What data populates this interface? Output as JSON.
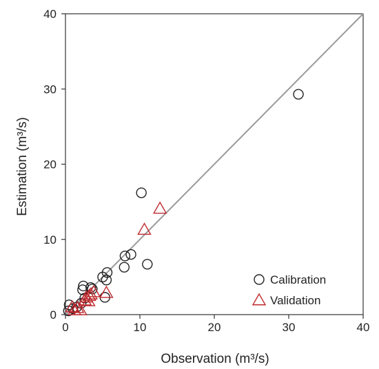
{
  "chart_data": {
    "type": "scatter",
    "title": "",
    "xlabel": "Observation (m³/s)",
    "ylabel": "Estimation (m³/s)",
    "xlim": [
      0,
      40
    ],
    "ylim": [
      0,
      40
    ],
    "xticks": [
      0,
      10,
      20,
      30,
      40
    ],
    "yticks": [
      0,
      10,
      20,
      30,
      40
    ],
    "grid": false,
    "legend_position": "bottom-right",
    "reference_line": {
      "from": [
        0,
        0
      ],
      "to": [
        40,
        40
      ],
      "color": "#9a9a9a"
    },
    "series": [
      {
        "name": "Calibration",
        "marker": "circle",
        "color": "#222222",
        "points": [
          [
            0.4,
            0.5
          ],
          [
            0.5,
            1.3
          ],
          [
            1.0,
            0.8
          ],
          [
            1.5,
            1.0
          ],
          [
            2.1,
            1.5
          ],
          [
            2.3,
            3.3
          ],
          [
            2.4,
            3.8
          ],
          [
            2.6,
            2.2
          ],
          [
            3.4,
            3.6
          ],
          [
            3.6,
            3.4
          ],
          [
            5.0,
            5.0
          ],
          [
            5.3,
            2.3
          ],
          [
            5.5,
            4.6
          ],
          [
            5.6,
            5.6
          ],
          [
            7.9,
            6.3
          ],
          [
            8.0,
            7.8
          ],
          [
            8.8,
            8.0
          ],
          [
            10.2,
            16.2
          ],
          [
            11.0,
            6.7
          ],
          [
            31.3,
            29.3
          ]
        ]
      },
      {
        "name": "Validation",
        "marker": "triangle",
        "color": "#c0282d",
        "points": [
          [
            0.9,
            1.0
          ],
          [
            1.2,
            0.6
          ],
          [
            1.6,
            0.9
          ],
          [
            2.0,
            0.6
          ],
          [
            2.6,
            1.9
          ],
          [
            2.8,
            2.3
          ],
          [
            3.1,
            1.8
          ],
          [
            3.2,
            2.5
          ],
          [
            3.4,
            2.7
          ],
          [
            3.8,
            3.0
          ],
          [
            5.5,
            2.9
          ],
          [
            10.6,
            11.3
          ],
          [
            12.7,
            14.1
          ]
        ]
      }
    ]
  }
}
